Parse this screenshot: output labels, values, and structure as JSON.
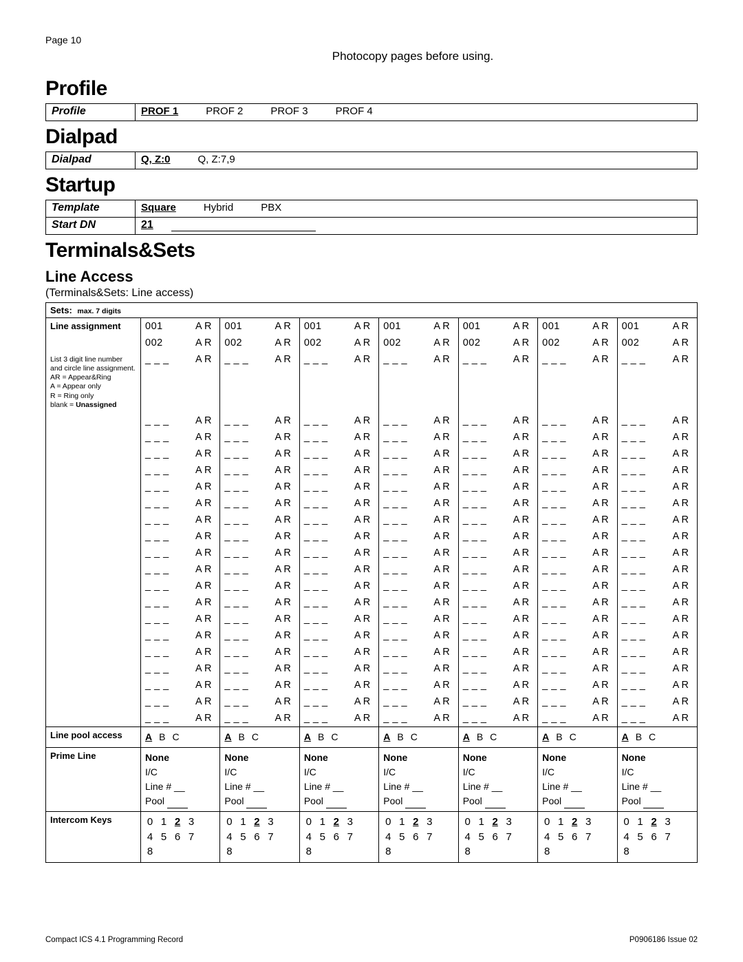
{
  "page_label": "Page  10",
  "instruction_text": "Photocopy pages before using.",
  "sections": {
    "profile": {
      "heading": "Profile",
      "row_label": "Profile",
      "options": [
        "PROF 1",
        "PROF 2",
        "PROF 3",
        "PROF 4"
      ],
      "selected_index": 0
    },
    "dialpad": {
      "heading": "Dialpad",
      "row_label": "Dialpad",
      "options": [
        "Q, Z:0",
        "Q, Z:7,9"
      ],
      "selected_index": 0
    },
    "startup": {
      "heading": "Startup",
      "template_label": "Template",
      "template_options": [
        "Square",
        "Hybrid",
        "PBX"
      ],
      "template_selected_index": 0,
      "startdn_label": "Start DN",
      "startdn_value": "21"
    }
  },
  "ts": {
    "heading": "Terminals&Sets",
    "sub_heading": "Line Access",
    "caption": "(Terminals&Sets: Line access)",
    "sets_head_a": "Sets:",
    "sets_head_b": "max. 7 digits",
    "line_assignment_label": "Line assignment",
    "note_lines": [
      "List 3 digit line number and circle line assignment.",
      "AR = Appear&Ring",
      "A = Appear only",
      "R = Ring only",
      "blank = Unassigned"
    ],
    "known_lines": [
      "001",
      "002"
    ],
    "blank_line_placeholder": "_ _ _",
    "ar_label": "A R",
    "extra_blank_rows": 20,
    "num_set_columns": 7,
    "line_pool_label": "Line pool access",
    "line_pool_opts": [
      "A",
      "B",
      "C"
    ],
    "line_pool_selected_index": 0,
    "prime_line_label": "Prime Line",
    "prime_opts": {
      "none": "None",
      "ic": "I/C",
      "line": "Line # __",
      "pool_prefix": "Pool",
      "pool_blank": "____"
    },
    "intercom_label": "Intercom Keys",
    "intercom_values": [
      "0",
      "1",
      "2",
      "3",
      "4",
      "5",
      "6",
      "7",
      "8"
    ],
    "intercom_bold_index": 2
  },
  "footer_left": "Compact ICS 4.1 Programming Record",
  "footer_right": "P0906186 Issue 02"
}
